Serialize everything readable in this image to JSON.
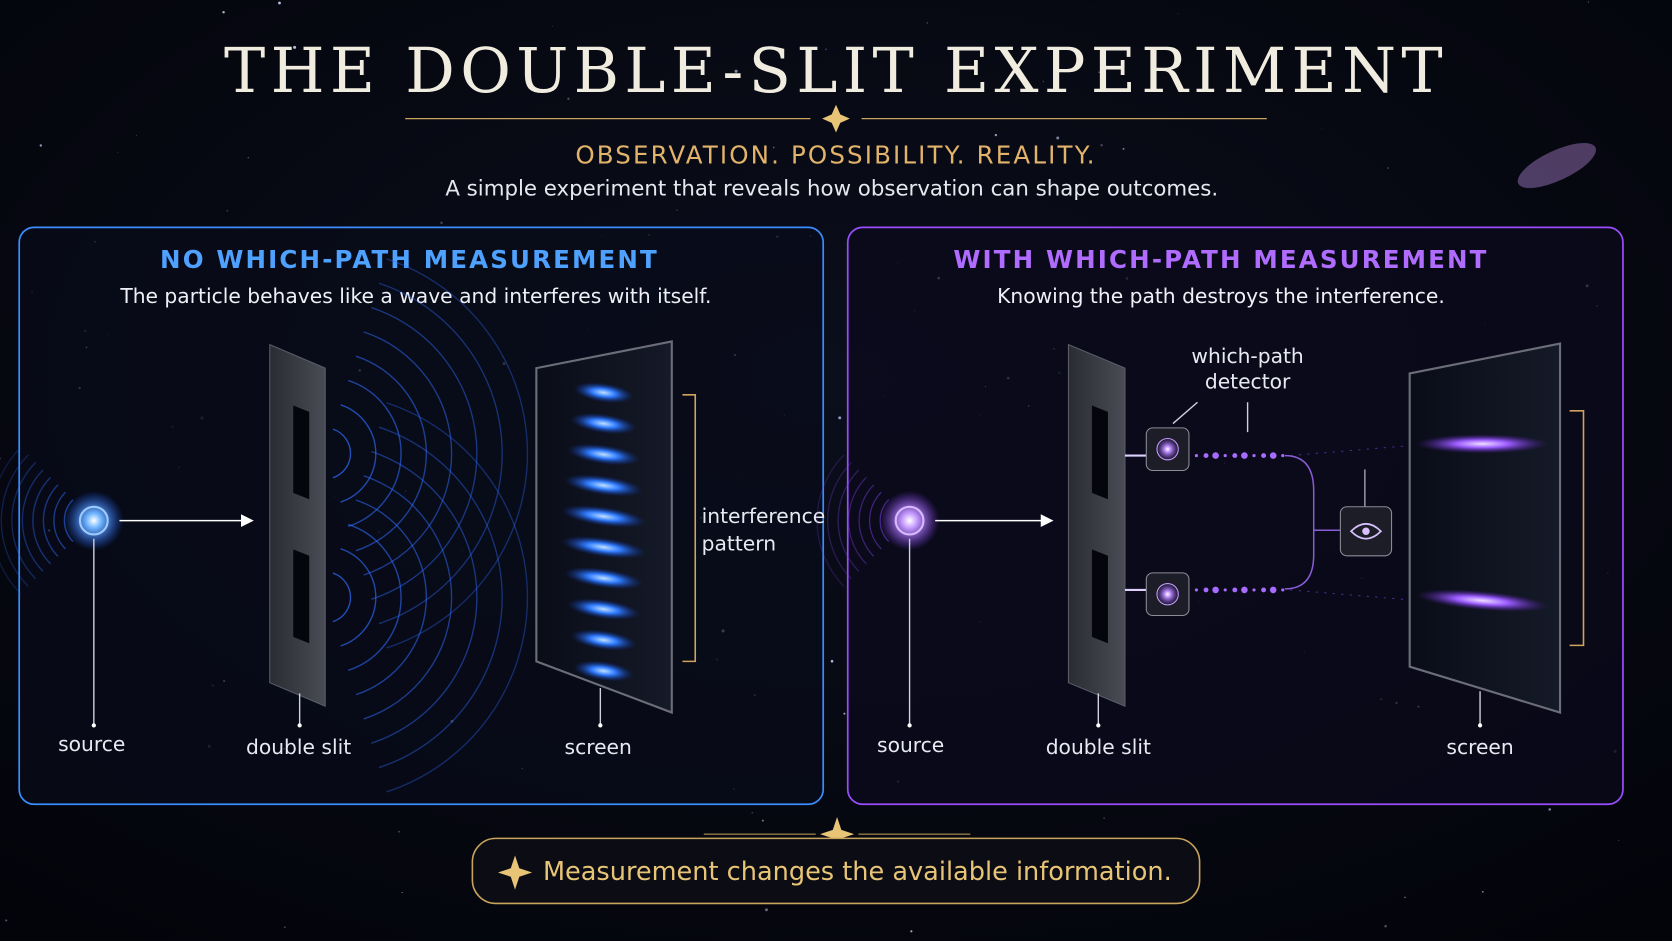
{
  "header": {
    "title": "THE DOUBLE-SLIT EXPERIMENT",
    "tagline": "OBSERVATION. POSSIBILITY. REALITY.",
    "description": "A simple experiment that reveals how observation can shape outcomes."
  },
  "panels": [
    {
      "title": "NO WHICH-PATH MEASUREMENT",
      "description": "The particle behaves like a wave and interferes with itself.",
      "labels": {
        "source": "source",
        "slit": "double slit",
        "screen": "screen",
        "pattern": [
          "interference",
          "pattern"
        ]
      }
    },
    {
      "title": "WITH WHICH-PATH MEASUREMENT",
      "description": "Knowing the path destroys the interference.",
      "labels": {
        "source": "source",
        "slit": "double slit",
        "screen": "screen",
        "detector": [
          "which-path",
          "detector"
        ]
      }
    }
  ],
  "footer": {
    "note": "Measurement changes the available information."
  }
}
